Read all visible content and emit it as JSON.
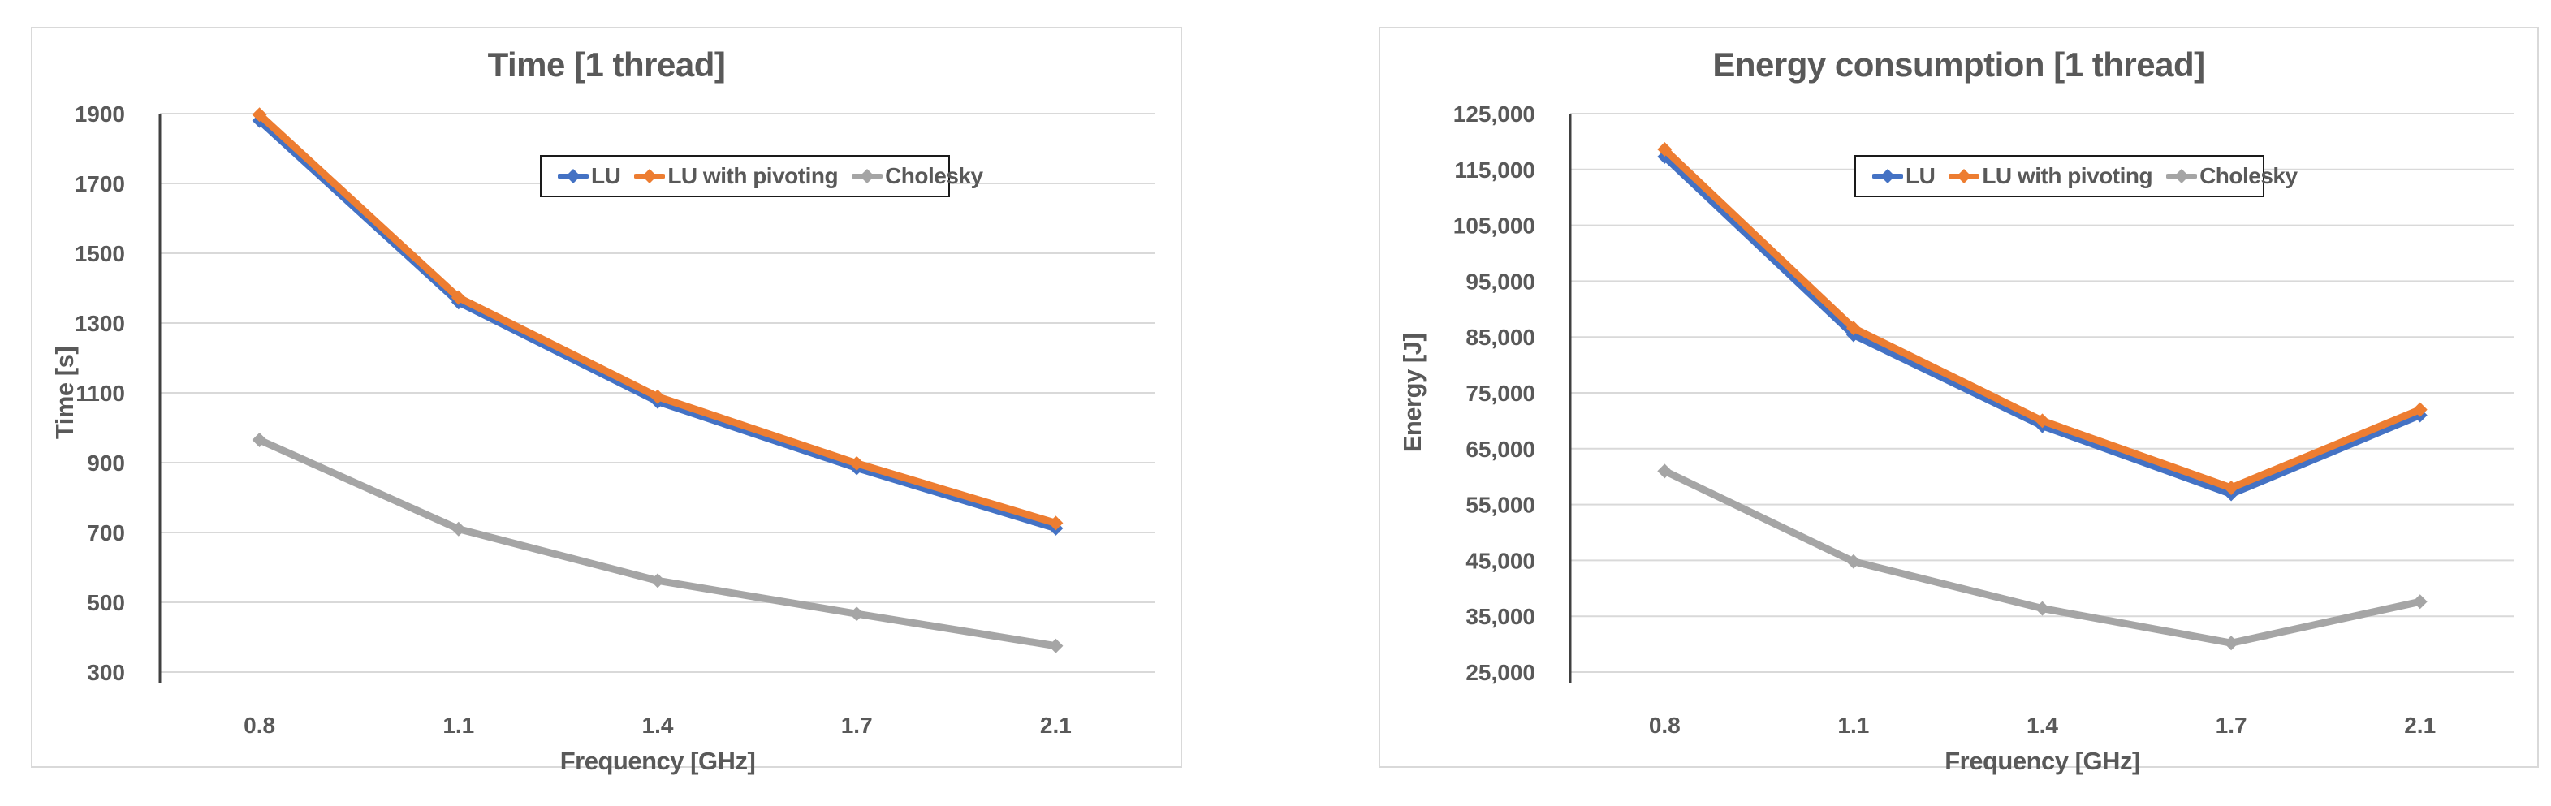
{
  "page": {
    "background": "#ffffff",
    "text_color": "#595959"
  },
  "chart_data": [
    {
      "type": "line",
      "title": "Time [1 thread]",
      "xlabel": "Frequency [GHz]",
      "ylabel": "Time [s]",
      "categories": [
        "0.8",
        "1.1",
        "1.4",
        "1.7",
        "2.1"
      ],
      "ylim": [
        300,
        1900
      ],
      "ytick_step": 200,
      "thousands_separator": false,
      "grid": true,
      "legend_position": "inside-top",
      "series": [
        {
          "name": "LU",
          "color": "#4472C4",
          "values": [
            1880,
            1360,
            1075,
            885,
            712
          ]
        },
        {
          "name": "LU with pivoting",
          "color": "#ED7D31",
          "values": [
            1897,
            1373,
            1089,
            898,
            727
          ]
        },
        {
          "name": "Cholesky",
          "color": "#A5A5A5",
          "values": [
            965,
            710,
            562,
            467,
            375
          ]
        }
      ]
    },
    {
      "type": "line",
      "title": "Energy consumption [1 thread]",
      "xlabel": "Frequency [GHz]",
      "ylabel": "Energy [J]",
      "categories": [
        "0.8",
        "1.1",
        "1.4",
        "1.7",
        "2.1"
      ],
      "ylim": [
        25000,
        125000
      ],
      "ytick_step": 10000,
      "thousands_separator": true,
      "grid": true,
      "legend_position": "inside-top",
      "series": [
        {
          "name": "LU",
          "color": "#4472C4",
          "values": [
            117300,
            85400,
            69100,
            56900,
            71000
          ]
        },
        {
          "name": "LU with pivoting",
          "color": "#ED7D31",
          "values": [
            118600,
            86600,
            70000,
            58000,
            72000
          ]
        },
        {
          "name": "Cholesky",
          "color": "#A5A5A5",
          "values": [
            61000,
            44800,
            36400,
            30200,
            37600
          ]
        }
      ]
    }
  ]
}
